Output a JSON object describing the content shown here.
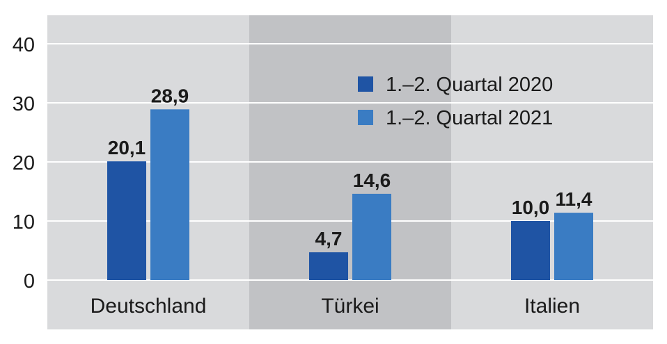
{
  "chart_data": {
    "type": "bar",
    "categories": [
      "Deutschland",
      "Türkei",
      "Italien"
    ],
    "series": [
      {
        "name": "1.–2. Quartal 2020",
        "values": [
          20.1,
          4.7,
          10.0
        ],
        "labels": [
          "20,1",
          "4,7",
          "10,0"
        ],
        "color": "#1f54a4"
      },
      {
        "name": "1.–2. Quartal 2021",
        "values": [
          28.9,
          14.6,
          11.4
        ],
        "labels": [
          "28,9",
          "14,6",
          "11,4"
        ],
        "color": "#3a7cc3"
      }
    ],
    "ylim": [
      0,
      40
    ],
    "yticks": [
      0,
      10,
      20,
      30,
      40
    ],
    "ytick_labels": [
      "0",
      "10",
      "20",
      "30",
      "40"
    ],
    "grid": true,
    "legend_position": "top-right",
    "colors": {
      "panel": "#d9dadc",
      "panel_highlight": "#c1c2c5",
      "gridline": "#ffffff"
    }
  }
}
